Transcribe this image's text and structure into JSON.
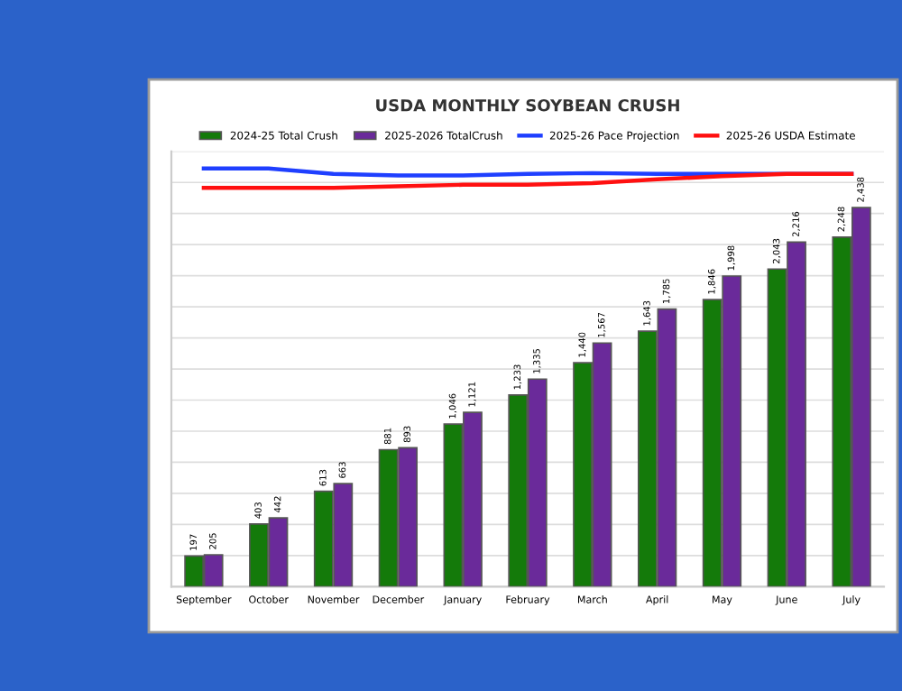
{
  "chart_data": {
    "type": "bar",
    "title": "USDA MONTHLY SOYBEAN CRUSH",
    "categories": [
      "September",
      "October",
      "November",
      "December",
      "January",
      "February",
      "March",
      "April",
      "May",
      "June",
      "July"
    ],
    "series": [
      {
        "name": "2024-25 Total Crush",
        "color": "#147a0a",
        "values": [
          197,
          403,
          613,
          881,
          1046,
          1233,
          1440,
          1643,
          1846,
          2043,
          2248
        ],
        "value_labels": [
          "197",
          "403",
          "613",
          "881",
          "1,046",
          "1,233",
          "1,440",
          "1,643",
          "1,846",
          "2,043",
          "2,248"
        ]
      },
      {
        "name": "2025-2026 TotalCrush",
        "color": "#6a2a9a",
        "values": [
          205,
          442,
          663,
          893,
          1121,
          1335,
          1567,
          1785,
          1998,
          2216,
          2438
        ],
        "value_labels": [
          "205",
          "442",
          "663",
          "893",
          "1,121",
          "1,335",
          "1,567",
          "1,785",
          "1,998",
          "2,216",
          "2,438"
        ]
      },
      {
        "name": "2025-26 Pace Projection",
        "type": "line",
        "color": "#1f3fff",
        "values": [
          2690,
          2690,
          2655,
          2645,
          2645,
          2655,
          2660,
          2655,
          2655,
          2655,
          2655
        ]
      },
      {
        "name": "2025-26 USDA Estimate",
        "type": "line",
        "color": "#ff1010",
        "values": [
          2565,
          2565,
          2565,
          2575,
          2585,
          2585,
          2595,
          2620,
          2640,
          2655,
          2655
        ]
      }
    ],
    "ylim": [
      0,
      2800
    ],
    "yticks": [
      {
        "value": 0,
        "label": null
      },
      {
        "value": 200,
        "label": null
      },
      {
        "value": 400,
        "label": null
      },
      {
        "value": 600,
        "label": null
      },
      {
        "value": 800,
        "label": null
      },
      {
        "value": 1000,
        "label": null
      },
      {
        "value": 1200,
        "label": null
      },
      {
        "value": 1400,
        "label": null
      },
      {
        "value": 1600,
        "label": null
      },
      {
        "value": 1800,
        "label": null
      },
      {
        "value": 2000,
        "label": null
      },
      {
        "value": 2200,
        "label": null
      },
      {
        "value": 2400,
        "label": null
      },
      {
        "value": 2600,
        "label": null
      },
      {
        "value": 2800,
        "label": null
      }
    ],
    "tick_labels": "x",
    "grid": "y",
    "legend": "top",
    "marker": "none",
    "line_style": "solid"
  }
}
